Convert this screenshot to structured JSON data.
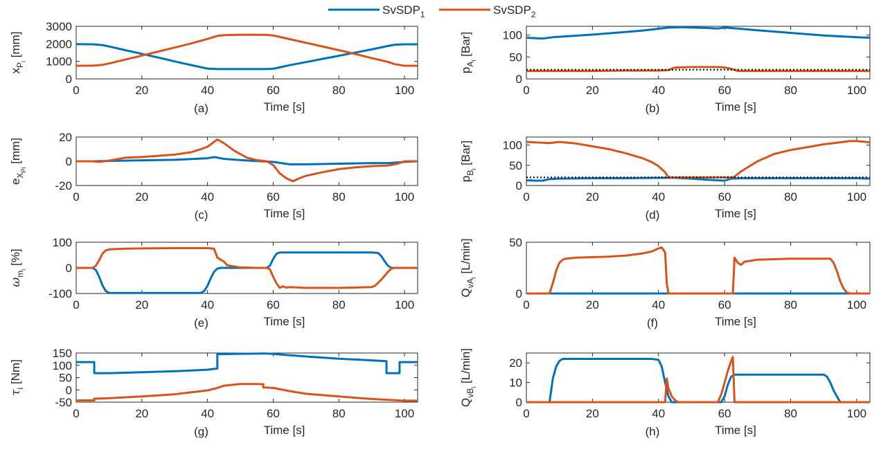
{
  "legend": {
    "items": [
      {
        "base": "SvSDP",
        "sub": "1",
        "color": "#0072BD"
      },
      {
        "base": "SvSDP",
        "sub": "2",
        "color": "#D95319"
      }
    ]
  },
  "colors": {
    "series1": "#0072BD",
    "series2": "#D95319",
    "reference": "#000000",
    "axis": "#262626"
  },
  "chart_data": [
    {
      "id": "a",
      "type": "line",
      "caption": "(a)",
      "xlabel": "Time [s]",
      "ylabel": {
        "main": "x",
        "sub": "P",
        "subsub": "i",
        "unit": "[mm]"
      },
      "xlim": [
        0,
        104
      ],
      "ylim": [
        0,
        3000
      ],
      "xticks": [
        0,
        20,
        40,
        60,
        80,
        100
      ],
      "yticks": [
        0,
        1000,
        2000,
        3000
      ],
      "series": [
        {
          "name": "SvSDP1",
          "x": [
            0,
            5,
            8,
            10,
            15,
            20,
            25,
            30,
            35,
            40,
            43,
            45,
            50,
            55,
            58,
            60,
            65,
            70,
            75,
            80,
            85,
            90,
            95,
            97,
            100,
            104
          ],
          "y": [
            1980,
            1975,
            1930,
            1850,
            1640,
            1430,
            1220,
            1000,
            790,
            590,
            560,
            560,
            560,
            560,
            560,
            575,
            780,
            960,
            1140,
            1320,
            1500,
            1680,
            1880,
            1950,
            1975,
            1975
          ]
        },
        {
          "name": "SvSDP2",
          "x": [
            0,
            5,
            8,
            10,
            15,
            20,
            25,
            30,
            35,
            40,
            43,
            45,
            50,
            55,
            58,
            60,
            65,
            70,
            75,
            80,
            85,
            90,
            95,
            97,
            100,
            104
          ],
          "y": [
            750,
            755,
            800,
            880,
            1100,
            1330,
            1560,
            1790,
            2020,
            2280,
            2450,
            2500,
            2520,
            2520,
            2510,
            2480,
            2270,
            2060,
            1850,
            1640,
            1420,
            1190,
            970,
            840,
            750,
            750
          ]
        }
      ]
    },
    {
      "id": "b",
      "type": "line",
      "caption": "(b)",
      "xlabel": "Time [s]",
      "ylabel": {
        "main": "p",
        "sub": "A",
        "subsub": "i",
        "unit": "[Bar]"
      },
      "xlim": [
        0,
        104
      ],
      "ylim": [
        0,
        120
      ],
      "xticks": [
        0,
        20,
        40,
        60,
        80,
        100
      ],
      "yticks": [
        0,
        50,
        100
      ],
      "series": [
        {
          "name": "SvSDP1",
          "x": [
            0,
            5,
            8,
            20,
            35,
            43,
            47,
            55,
            58,
            60,
            62,
            70,
            80,
            90,
            100,
            104
          ],
          "y": [
            94,
            92,
            95,
            101,
            110,
            117,
            118,
            116,
            115,
            117,
            116,
            111,
            105,
            99,
            95,
            94
          ]
        },
        {
          "name": "SvSDP2",
          "x": [
            0,
            10,
            20,
            30,
            40,
            43,
            45,
            50,
            55,
            58,
            60,
            62,
            64,
            70,
            80,
            90,
            100,
            104
          ],
          "y": [
            18,
            18,
            18,
            19,
            19,
            20,
            26,
            27,
            27,
            27,
            26,
            23,
            18,
            18,
            18,
            18,
            18,
            18
          ]
        },
        {
          "name": "reference",
          "style": "dotted",
          "x": [
            0,
            104
          ],
          "y": [
            21,
            21
          ]
        }
      ]
    },
    {
      "id": "c",
      "type": "line",
      "caption": "(c)",
      "xlabel": "Time [s]",
      "ylabel": {
        "main": "e",
        "sub": "X",
        "subsub": "Pi",
        "unit": "[mm]"
      },
      "xlim": [
        0,
        104
      ],
      "ylim": [
        -20,
        20
      ],
      "xticks": [
        0,
        20,
        40,
        60,
        80,
        100
      ],
      "yticks": [
        -20,
        0,
        20
      ],
      "series": [
        {
          "name": "SvSDP1",
          "x": [
            0,
            5,
            10,
            20,
            30,
            40,
            42,
            45,
            50,
            55,
            60,
            65,
            70,
            80,
            90,
            95,
            100,
            104
          ],
          "y": [
            0,
            0,
            0.3,
            0.8,
            1.2,
            2.5,
            3.5,
            2,
            1,
            0.2,
            -0.5,
            -2.5,
            -2.5,
            -2,
            -1.5,
            -1.5,
            -0.5,
            0
          ]
        },
        {
          "name": "SvSDP2",
          "x": [
            0,
            5,
            7,
            10,
            13,
            15,
            20,
            25,
            30,
            35,
            38,
            40,
            42,
            43,
            45,
            48,
            52,
            55,
            58,
            60,
            62,
            64,
            66,
            68,
            70,
            75,
            80,
            85,
            90,
            95,
            98,
            100,
            104
          ],
          "y": [
            0,
            0,
            -0.5,
            0.5,
            2,
            3,
            3.5,
            4.5,
            5.5,
            7.5,
            10,
            12,
            16,
            18,
            15,
            9,
            3,
            1,
            0,
            -3,
            -10,
            -14,
            -16.5,
            -14,
            -12,
            -9,
            -6.5,
            -5,
            -4,
            -3.5,
            -2,
            0,
            0
          ]
        }
      ]
    },
    {
      "id": "d",
      "type": "line",
      "caption": "(d)",
      "xlabel": "Time [s]",
      "ylabel": {
        "main": "p",
        "sub": "B",
        "subsub": "i",
        "unit": "[Bar]"
      },
      "xlim": [
        0,
        104
      ],
      "ylim": [
        0,
        120
      ],
      "xticks": [
        0,
        20,
        40,
        60,
        80,
        100
      ],
      "yticks": [
        0,
        50,
        100
      ],
      "series": [
        {
          "name": "SvSDP1",
          "x": [
            0,
            3,
            5,
            7,
            10,
            20,
            30,
            40,
            45,
            50,
            55,
            60,
            62,
            65,
            70,
            80,
            90,
            100,
            104
          ],
          "y": [
            13,
            12,
            12,
            16,
            17,
            18,
            18,
            19,
            19,
            17,
            14,
            12,
            17,
            18,
            18,
            18,
            18,
            18,
            17
          ]
        },
        {
          "name": "SvSDP2",
          "x": [
            0,
            5,
            7,
            10,
            15,
            20,
            25,
            30,
            35,
            38,
            40,
            42,
            43,
            45,
            50,
            55,
            58,
            60,
            62,
            63,
            65,
            70,
            75,
            80,
            85,
            90,
            95,
            98,
            100,
            104
          ],
          "y": [
            108,
            106,
            105,
            108,
            104,
            97,
            90,
            80,
            68,
            58,
            48,
            33,
            20,
            20,
            20,
            20,
            20,
            20,
            20,
            22,
            35,
            60,
            78,
            88,
            95,
            102,
            107,
            110,
            110,
            107
          ]
        },
        {
          "name": "reference",
          "style": "dotted",
          "x": [
            0,
            104
          ],
          "y": [
            20,
            20
          ]
        }
      ]
    },
    {
      "id": "e",
      "type": "line",
      "caption": "(e)",
      "xlabel": "Time [s]",
      "ylabel": {
        "main": "ω",
        "sub": "m",
        "subsub": "i",
        "unit": "[%]"
      },
      "xlim": [
        0,
        104
      ],
      "ylim": [
        -100,
        100
      ],
      "xticks": [
        0,
        20,
        40,
        60,
        80,
        100
      ],
      "yticks": [
        -100,
        0,
        100
      ],
      "series": [
        {
          "name": "SvSDP1",
          "x": [
            0,
            5,
            6,
            7,
            8,
            9,
            10,
            11,
            20,
            30,
            38,
            39,
            40,
            41,
            42,
            43,
            44,
            45,
            50,
            55,
            57,
            58,
            59,
            60,
            61,
            62,
            70,
            80,
            90,
            92,
            93,
            94,
            95,
            96,
            97,
            104
          ],
          "y": [
            0,
            0,
            -8,
            -35,
            -68,
            -90,
            -98,
            -98,
            -98,
            -98,
            -98,
            -90,
            -70,
            -40,
            -15,
            -3,
            0,
            0,
            0,
            0,
            0,
            0,
            8,
            35,
            55,
            60,
            60,
            60,
            60,
            58,
            45,
            25,
            8,
            0,
            0,
            0
          ]
        },
        {
          "name": "SvSDP2",
          "x": [
            0,
            5,
            6,
            7,
            8,
            9,
            10,
            11,
            15,
            20,
            30,
            40,
            42,
            43,
            44,
            45,
            46,
            50,
            55,
            58,
            59,
            60,
            61,
            62,
            63,
            64,
            65,
            70,
            80,
            90,
            91,
            93,
            95,
            96,
            97,
            104
          ],
          "y": [
            0,
            0,
            8,
            30,
            55,
            68,
            72,
            73,
            75,
            76,
            77,
            77,
            75,
            40,
            32,
            25,
            10,
            2,
            0,
            0,
            -5,
            -35,
            -60,
            -78,
            -72,
            -77,
            -75,
            -78,
            -78,
            -75,
            -70,
            -45,
            -15,
            -3,
            0,
            0
          ]
        }
      ]
    },
    {
      "id": "f",
      "type": "line",
      "caption": "(f)",
      "xlabel": "Time [s]",
      "ylabel": {
        "main": "Q",
        "sub": "vA",
        "subsub": "i",
        "unit": "[L/min]"
      },
      "xlim": [
        0,
        104
      ],
      "ylim": [
        0,
        50
      ],
      "xticks": [
        0,
        20,
        40,
        60,
        80,
        100
      ],
      "yticks": [
        0,
        50
      ],
      "series": [
        {
          "name": "SvSDP1",
          "x": [
            0,
            104
          ],
          "y": [
            0,
            0
          ]
        },
        {
          "name": "SvSDP2",
          "x": [
            0,
            7,
            8,
            9,
            10,
            11,
            12,
            15,
            20,
            25,
            30,
            35,
            38,
            40,
            41,
            42,
            42.5,
            43,
            62.5,
            63,
            64,
            65,
            66,
            70,
            80,
            90,
            92,
            93,
            94,
            95,
            96,
            97,
            98,
            104
          ],
          "y": [
            0,
            0,
            10,
            22,
            30,
            33,
            34,
            35,
            35.5,
            36,
            37,
            39,
            41,
            44,
            45,
            40,
            10,
            0,
            0,
            35,
            30,
            28,
            31,
            33,
            34,
            34,
            34,
            30,
            22,
            12,
            5,
            1,
            0,
            0
          ]
        }
      ]
    },
    {
      "id": "g",
      "type": "line",
      "caption": "(g)",
      "xlabel": "Time [s]",
      "ylabel": {
        "main": "τ",
        "sub": "i",
        "subsub": "",
        "unit": "[Nm]"
      },
      "xlim": [
        0,
        104
      ],
      "ylim": [
        -50,
        150
      ],
      "xticks": [
        0,
        20,
        40,
        60,
        80,
        100
      ],
      "yticks": [
        -50,
        0,
        50,
        100,
        150
      ],
      "series": [
        {
          "name": "SvSDP1",
          "x": [
            0,
            5.5,
            5.5,
            10,
            20,
            30,
            40,
            43,
            43,
            50,
            58,
            60,
            70,
            80,
            90,
            94.5,
            94.5,
            98.5,
            98.5,
            104
          ],
          "y": [
            113,
            113,
            68,
            68,
            72,
            76,
            82,
            87,
            145,
            147,
            148,
            146,
            136,
            127,
            120,
            117,
            68,
            68,
            113,
            113
          ]
        },
        {
          "name": "SvSDP2",
          "x": [
            0,
            5.5,
            5.5,
            10,
            20,
            30,
            35,
            40,
            43,
            45,
            50,
            55,
            57,
            57,
            60,
            65,
            70,
            80,
            90,
            100,
            104
          ],
          "y": [
            -43,
            -43,
            -36,
            -34,
            -27,
            -18,
            -10,
            -2,
            8,
            17,
            24,
            24,
            23,
            10,
            8,
            -5,
            -16,
            -27,
            -37,
            -44,
            -44
          ]
        }
      ]
    },
    {
      "id": "h",
      "type": "line",
      "caption": "(h)",
      "xlabel": "Time [s]",
      "ylabel": {
        "main": "Q",
        "sub": "vB",
        "subsub": "i",
        "unit": "[L/min]"
      },
      "xlim": [
        0,
        104
      ],
      "ylim": [
        0,
        25
      ],
      "xticks": [
        0,
        20,
        40,
        60,
        80,
        100
      ],
      "yticks": [
        0,
        10,
        20
      ],
      "series": [
        {
          "name": "SvSDP1",
          "x": [
            0,
            7,
            8,
            9,
            10,
            11,
            12,
            20,
            30,
            35,
            38,
            40,
            41,
            42,
            43,
            44,
            59,
            60,
            61,
            62,
            63,
            64,
            70,
            80,
            88,
            90,
            91,
            92,
            93,
            94,
            95,
            104
          ],
          "y": [
            0,
            0,
            12,
            18,
            21,
            22,
            22,
            22,
            22,
            22,
            22,
            21.5,
            18,
            10,
            3,
            0,
            0,
            3,
            9,
            13,
            14,
            14,
            14,
            14,
            14,
            14,
            13,
            10,
            6,
            3,
            0,
            0
          ]
        },
        {
          "name": "SvSDP2",
          "x": [
            0,
            42,
            42.5,
            43,
            44,
            45,
            46,
            47,
            58,
            59,
            60,
            61,
            62,
            62.5,
            63,
            104
          ],
          "y": [
            0,
            0,
            12,
            7,
            3,
            1,
            0,
            0,
            0,
            4,
            10,
            16,
            21,
            23,
            0,
            0
          ]
        }
      ]
    }
  ]
}
